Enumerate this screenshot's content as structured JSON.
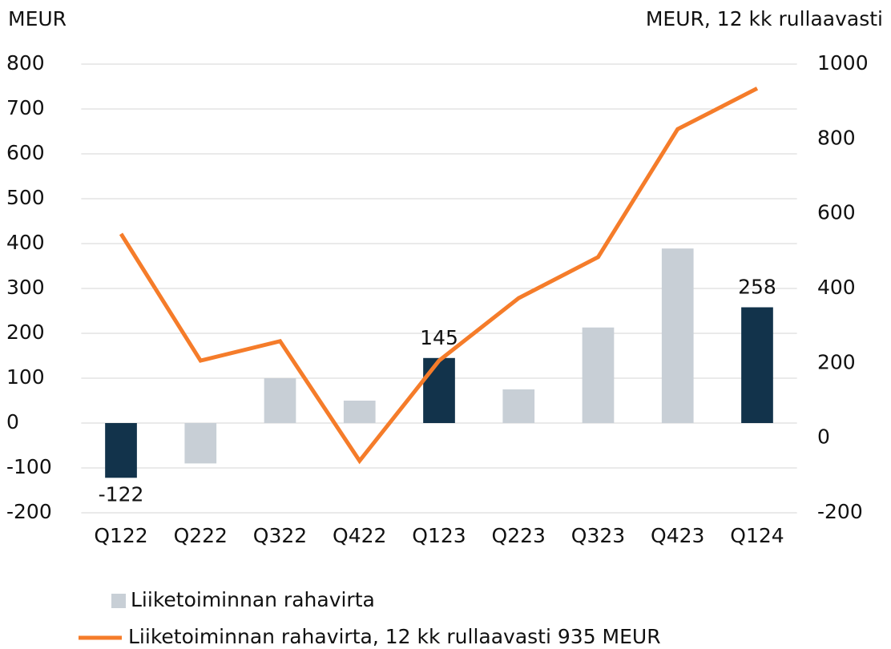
{
  "chart_data": {
    "type": "bar_line",
    "y_label": "MEUR",
    "y2_label": "MEUR, 12 kk rullaavasti",
    "categories": [
      "Q122",
      "Q222",
      "Q322",
      "Q422",
      "Q123",
      "Q223",
      "Q323",
      "Q423",
      "Q124"
    ],
    "series": [
      {
        "name": "Liiketoiminnan rahavirta",
        "type": "bar",
        "color": "#c8cfd6",
        "colors": [
          "#12334b",
          "#c8cfd6",
          "#c8cfd6",
          "#c8cfd6",
          "#12334b",
          "#c8cfd6",
          "#c8cfd6",
          "#c8cfd6",
          "#12334b"
        ],
        "values": [
          -122,
          -90,
          100,
          50,
          145,
          75,
          213,
          389,
          258
        ],
        "show_labels": [
          true,
          false,
          false,
          false,
          true,
          false,
          false,
          false,
          true
        ]
      },
      {
        "name": "Liiketoiminnan rahavirta, 12 kk rullaavasti 935 MEUR",
        "type": "line",
        "axis": "y2",
        "color": "#f57c2a",
        "values": [
          546,
          207,
          259,
          -61,
          207,
          374,
          484,
          826,
          935
        ]
      }
    ],
    "ylim": [
      -200,
      800
    ],
    "yticks": [
      -200,
      -100,
      0,
      100,
      200,
      300,
      400,
      500,
      600,
      700,
      800
    ],
    "y2lim": [
      -200,
      1000
    ],
    "y2ticks": [
      -200,
      0,
      200,
      400,
      600,
      800,
      1000
    ],
    "grid": true
  }
}
